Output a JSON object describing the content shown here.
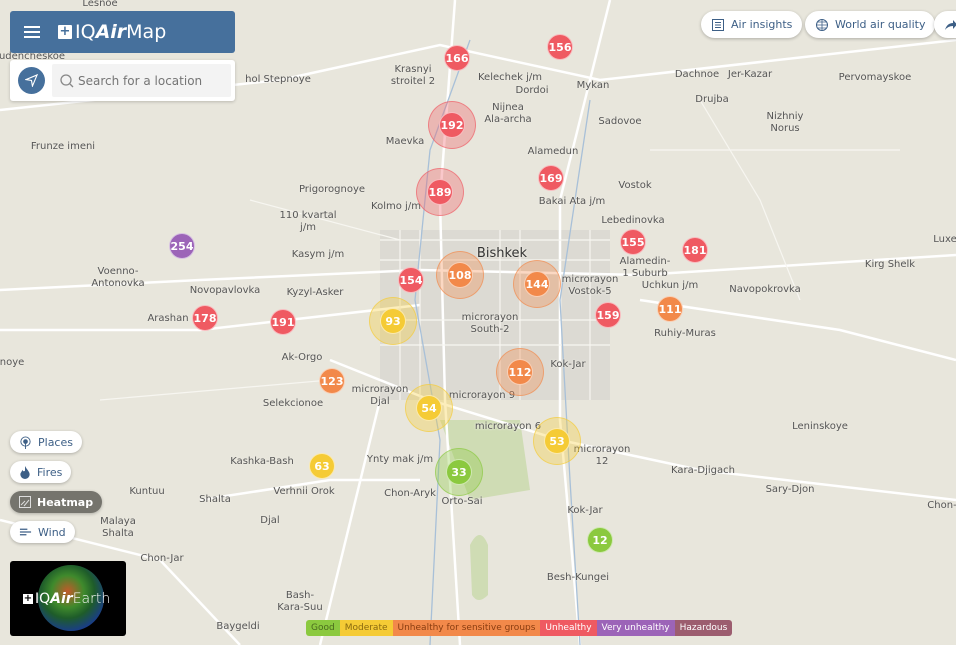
{
  "header": {
    "brand_prefix": "IQ",
    "brand_bold": "Air",
    "brand_suffix": " Map",
    "menu_icon": "hamburger-icon"
  },
  "search": {
    "placeholder": "Search for a location",
    "value": ""
  },
  "top_buttons": [
    {
      "label": "Air insights",
      "icon": "list-icon"
    },
    {
      "label": "World air quality",
      "icon": "globe-icon"
    },
    {
      "label": "",
      "icon": "share-arrow-icon"
    }
  ],
  "layer_buttons": [
    {
      "label": "Places",
      "icon": "pin-icon",
      "active": false
    },
    {
      "label": "Fires",
      "icon": "flame-icon",
      "active": false
    },
    {
      "label": "Heatmap",
      "icon": "heatmap-icon",
      "active": true
    },
    {
      "label": "Wind",
      "icon": "wind-icon",
      "active": false
    }
  ],
  "earth_promo": {
    "brand_prefix": "IQ",
    "brand_bold": "Air",
    "brand_suffix": " Earth"
  },
  "legend": [
    {
      "label": "Good",
      "color": "#8bc93f",
      "text": "#4a6a1e"
    },
    {
      "label": "Moderate",
      "color": "#f5cb35",
      "text": "#8a6a10"
    },
    {
      "label": "Unhealthy for sensitive groups",
      "color": "#f2894a",
      "text": "#8a3d10"
    },
    {
      "label": "Unhealthy",
      "color": "#ef5a62",
      "text": "#fff"
    },
    {
      "label": "Very unhealthy",
      "color": "#9c64b8",
      "text": "#fff"
    },
    {
      "label": "Hazardous",
      "color": "#9c5d6f",
      "text": "#fff"
    }
  ],
  "places": [
    "Lesnoe",
    "udencheskoe",
    "hol Stepnoye",
    "Krasnyi\nstroitel 2",
    "Kelechek j/m",
    "Dordoi",
    "Mykan",
    "Dachnoe",
    "Jer-Kazar",
    "Pervomayskoe",
    "Drujba",
    "Nizhniy\nNorus",
    "Sadovoe",
    "Nijnea\nAla-archa",
    "Maevka",
    "Frunze imeni",
    "Prigorognoye",
    "Kolmo j/m",
    "Alamedun",
    "Bakai Ata j/m",
    "Vostok",
    "110 kvartal\nj/m",
    "Kasym j/m",
    "Bishkek",
    "Voenno-\nAntonovka",
    "Novopavlovka",
    "Kyzyl-Asker",
    "Lebedinovka",
    "Alamedin-\n1 Suburb",
    "Kirg Shelk",
    "Luxe",
    "Navopokrovka",
    "Uchkun j/m",
    "Ruhiy-Muras",
    "microrayon\nSouth-2",
    "microrayon\nVostok-5",
    "Ak-Orgo",
    "Selekcionoe",
    "microrayon\nDjal",
    "microrayon 9",
    "Kok-Jar",
    "Leninskoye",
    "Kara-Djigach",
    "Sary-Djon",
    "Chon-",
    "Kashka-Bash",
    "Ynty mak j/m",
    "Verhnii Orok",
    "Kuntuu",
    "Shalta",
    "Chon-Aryk",
    "Orto-Sai",
    "microrayon 6",
    "microrayon\n12",
    "Kok-Jar",
    "Djal",
    "Malaya\nShalta",
    "Chon-Jar",
    "Besh-Kungei",
    "Bash-\nKara-Suu",
    "Baygeldi",
    "noye",
    "Arashan"
  ],
  "stations": [
    {
      "aqi": 166,
      "level": "Unhealthy"
    },
    {
      "aqi": 156,
      "level": "Unhealthy"
    },
    {
      "aqi": 192,
      "level": "Unhealthy"
    },
    {
      "aqi": 189,
      "level": "Unhealthy"
    },
    {
      "aqi": 169,
      "level": "Unhealthy"
    },
    {
      "aqi": 254,
      "level": "Very unhealthy"
    },
    {
      "aqi": 155,
      "level": "Unhealthy"
    },
    {
      "aqi": 181,
      "level": "Unhealthy"
    },
    {
      "aqi": 154,
      "level": "Unhealthy"
    },
    {
      "aqi": 108,
      "level": "Unhealthy for sensitive groups"
    },
    {
      "aqi": 144,
      "level": "Unhealthy for sensitive groups"
    },
    {
      "aqi": 178,
      "level": "Unhealthy"
    },
    {
      "aqi": 191,
      "level": "Unhealthy"
    },
    {
      "aqi": 93,
      "level": "Moderate"
    },
    {
      "aqi": 159,
      "level": "Unhealthy"
    },
    {
      "aqi": 111,
      "level": "Unhealthy for sensitive groups"
    },
    {
      "aqi": 112,
      "level": "Unhealthy for sensitive groups"
    },
    {
      "aqi": 123,
      "level": "Unhealthy for sensitive groups"
    },
    {
      "aqi": 54,
      "level": "Moderate"
    },
    {
      "aqi": 53,
      "level": "Moderate"
    },
    {
      "aqi": 33,
      "level": "Good"
    },
    {
      "aqi": 63,
      "level": "Moderate"
    },
    {
      "aqi": 12,
      "level": "Good"
    }
  ]
}
